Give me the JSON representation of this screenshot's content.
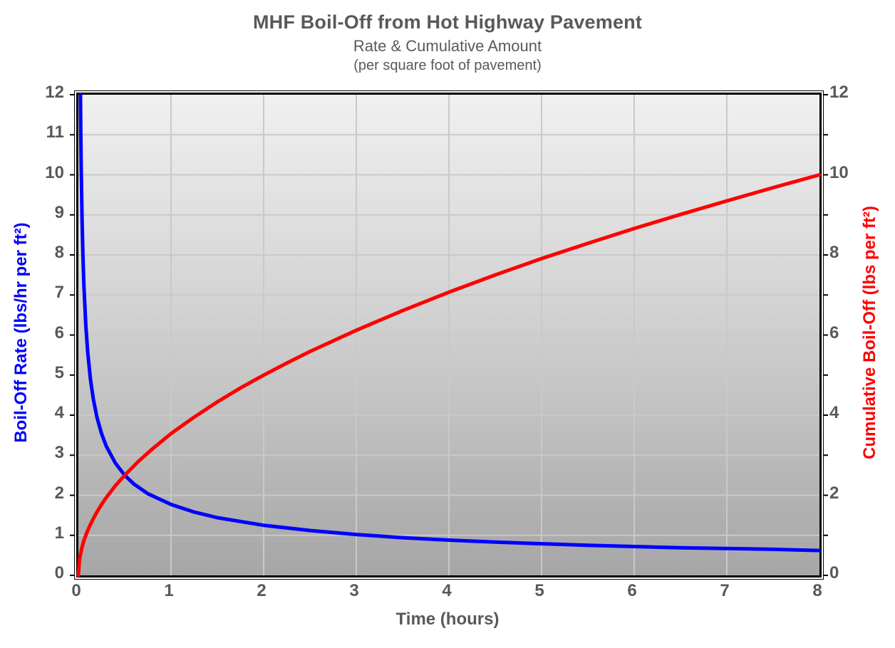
{
  "header": {
    "title": "MHF Boil-Off from Hot Highway Pavement",
    "subtitle": "Rate & Cumulative Amount",
    "subtitle2": "(per square foot of pavement)"
  },
  "colors": {
    "text_gray": "#595959",
    "rate_blue": "#0000ff",
    "cumulative_red": "#ff0000",
    "gridline": "#c9c9c9",
    "frame": "#000000",
    "plot_bg_top": "#f0f0f0",
    "plot_bg_bottom": "#a6a6a6"
  },
  "chart_data": {
    "type": "line",
    "title": "MHF Boil-Off from Hot Highway Pavement",
    "subtitle": "Rate & Cumulative Amount",
    "subtitle2": "(per square foot of pavement)",
    "xlabel": "Time (hours)",
    "ylabel_left": "Boil-Off Rate (lbs/hr per ft²)",
    "ylabel_right": "Cumulative Boil-Off (lbs per ft²)",
    "xlim": [
      0,
      8
    ],
    "ylim_left": [
      0,
      12
    ],
    "ylim_right": [
      0,
      12
    ],
    "grid": true,
    "legend": "none",
    "x_ticks": [
      0,
      1,
      2,
      3,
      4,
      5,
      6,
      7,
      8
    ],
    "left_ticks": [
      0,
      1,
      2,
      3,
      4,
      5,
      6,
      7,
      8,
      9,
      10,
      11,
      12
    ],
    "right_tick_marks": [
      0,
      1,
      2,
      3,
      4,
      5,
      6,
      7,
      8,
      9,
      10,
      11,
      12
    ],
    "right_tick_labels": [
      0,
      2,
      4,
      6,
      8,
      10,
      12
    ],
    "series": [
      {
        "name": "Boil-Off Rate",
        "axis": "left",
        "color": "#0000ff",
        "width": 5,
        "x": [
          0.022,
          0.025,
          0.03,
          0.04,
          0.05,
          0.06,
          0.08,
          0.1,
          0.13,
          0.16,
          0.2,
          0.25,
          0.3,
          0.4,
          0.5,
          0.6,
          0.75,
          1,
          1.25,
          1.5,
          2,
          2.5,
          3,
          3.5,
          4,
          4.5,
          5,
          5.5,
          6,
          6.5,
          7,
          7.5,
          8
        ],
        "y": [
          12.0,
          11.18,
          10.21,
          8.84,
          7.91,
          7.22,
          6.25,
          5.59,
          4.9,
          4.42,
          3.95,
          3.54,
          3.23,
          2.8,
          2.5,
          2.28,
          2.04,
          1.77,
          1.58,
          1.44,
          1.25,
          1.12,
          1.02,
          0.94,
          0.88,
          0.83,
          0.79,
          0.75,
          0.72,
          0.69,
          0.67,
          0.65,
          0.62
        ]
      },
      {
        "name": "Cumulative Boil-Off",
        "axis": "right",
        "color": "#ff0000",
        "width": 5,
        "x": [
          0,
          0.01,
          0.02,
          0.04,
          0.06,
          0.09,
          0.12,
          0.16,
          0.2,
          0.25,
          0.3,
          0.4,
          0.5,
          0.65,
          0.8,
          1,
          1.25,
          1.5,
          1.75,
          2,
          2.25,
          2.5,
          3,
          3.5,
          4,
          4.5,
          5,
          5.5,
          6,
          6.5,
          7,
          7.5,
          8
        ],
        "y": [
          0,
          0.35,
          0.5,
          0.71,
          0.87,
          1.06,
          1.22,
          1.41,
          1.58,
          1.77,
          1.94,
          2.24,
          2.5,
          2.85,
          3.16,
          3.54,
          3.95,
          4.33,
          4.68,
          5.0,
          5.3,
          5.59,
          6.12,
          6.61,
          7.07,
          7.5,
          7.91,
          8.29,
          8.66,
          9.01,
          9.35,
          9.68,
          10.0
        ]
      }
    ]
  }
}
